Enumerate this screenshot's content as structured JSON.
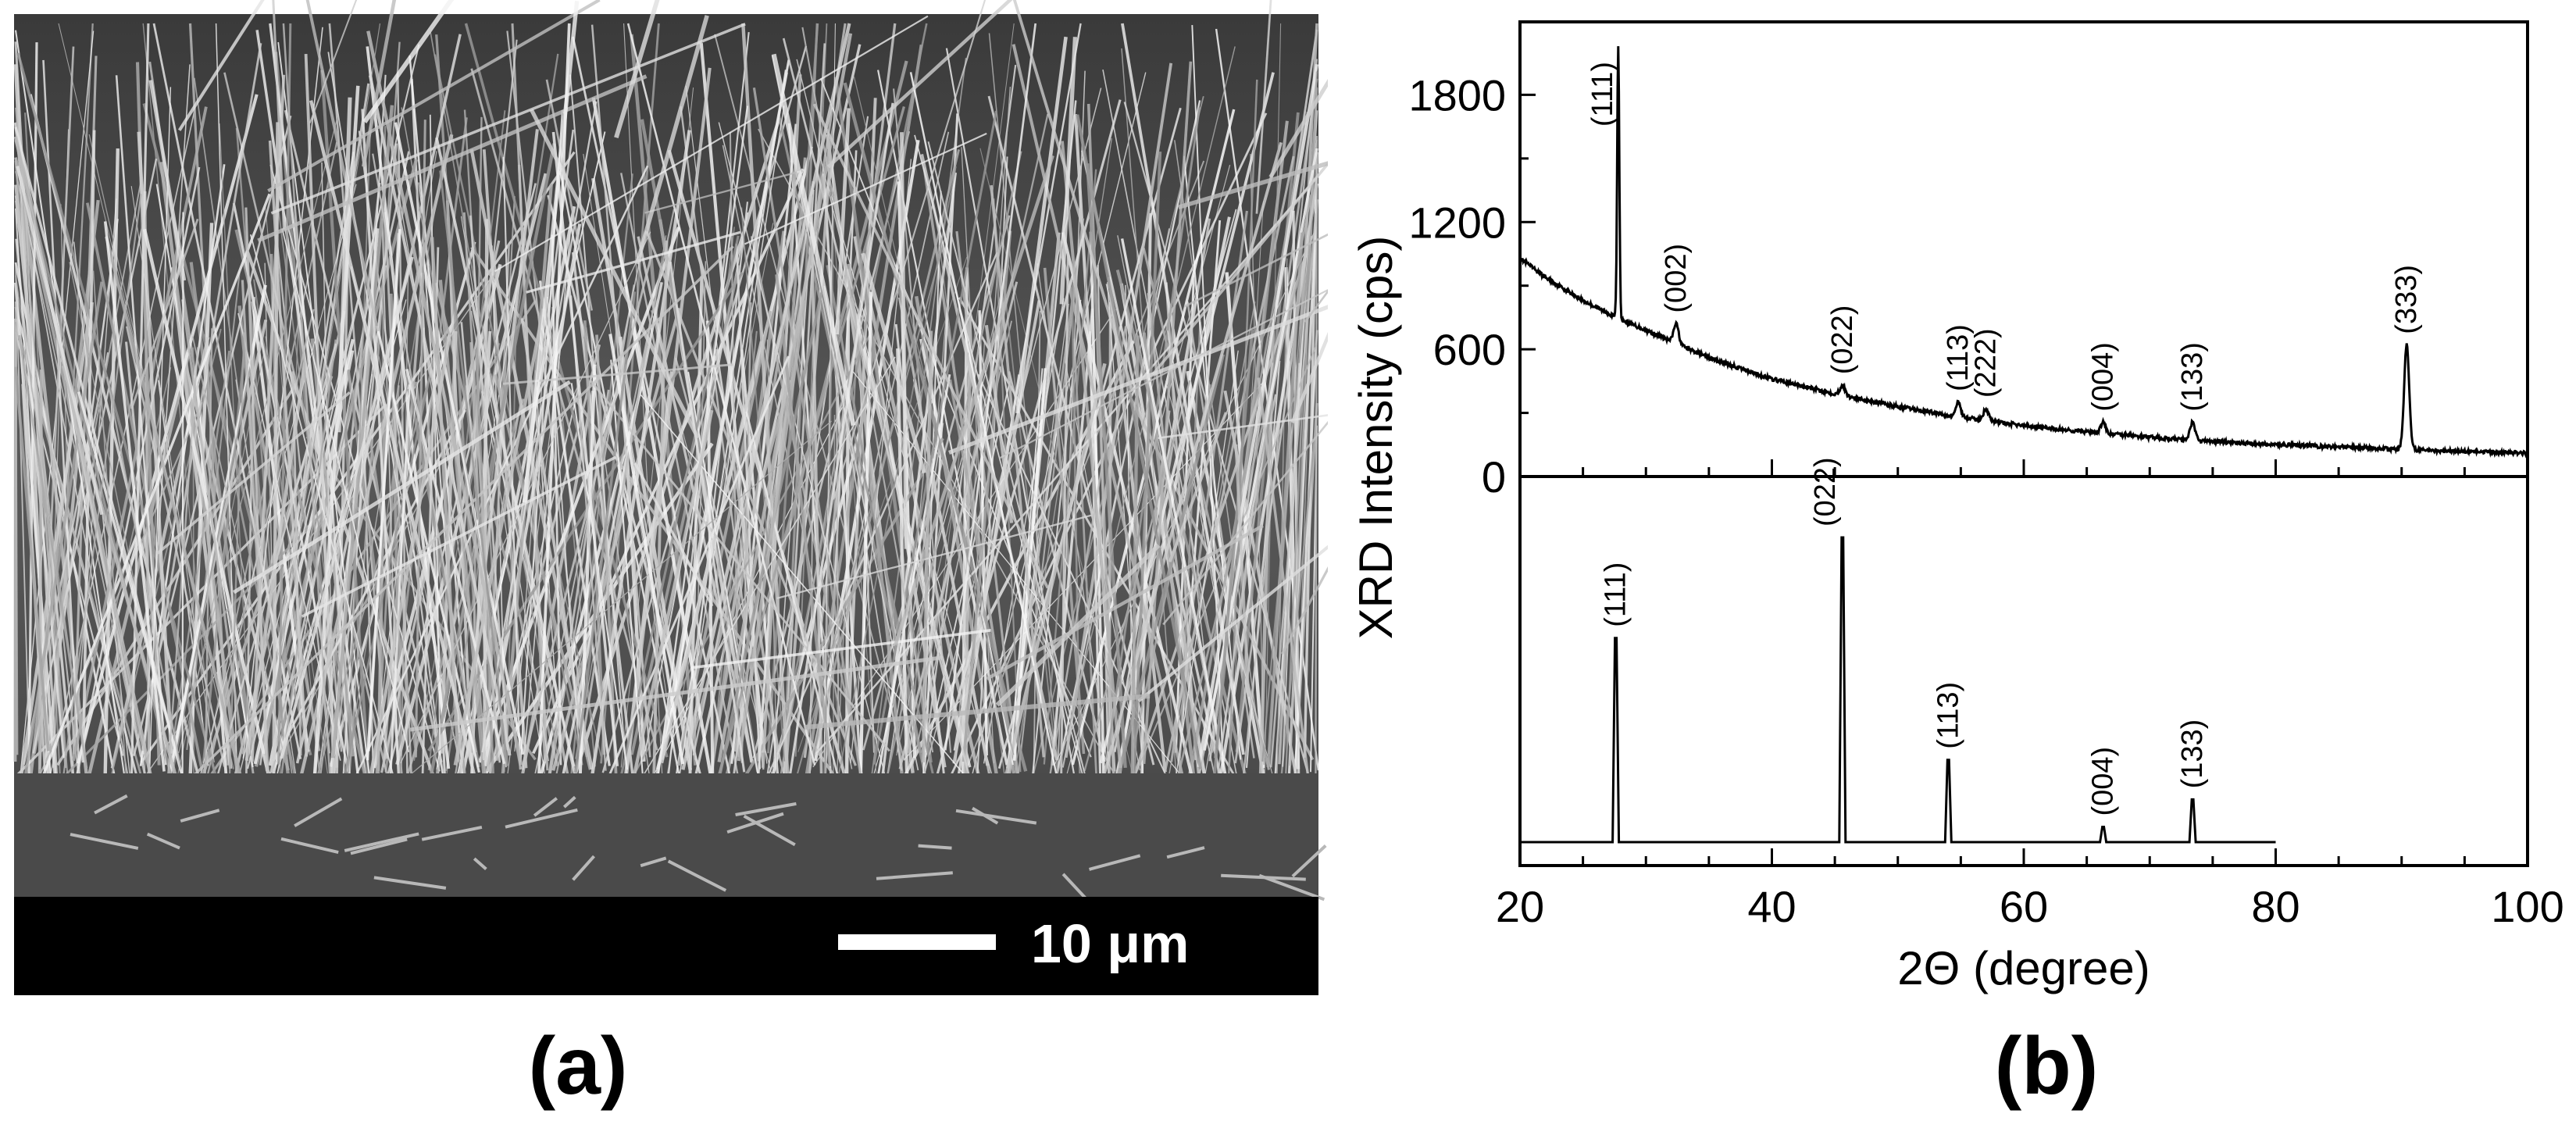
{
  "panel_a": {
    "label": "(a)",
    "scale_bar_text": "10 μm",
    "image_kind": "sem-micrograph-nanowire-array"
  },
  "panel_b": {
    "label": "(b)"
  },
  "chart_data": {
    "type": "line",
    "xlabel": "2Θ (degree)",
    "ylabel": "XRD Intensity (cps)",
    "xlim": [
      20,
      100
    ],
    "x_ticks": [
      20,
      40,
      60,
      80,
      100
    ],
    "y_ticks": [
      0,
      600,
      1200,
      1800
    ],
    "ylim_top": [
      0,
      2100
    ],
    "grid": false,
    "subplots": [
      {
        "name": "measured",
        "background": [
          [
            20,
            1030
          ],
          [
            22,
            940
          ],
          [
            25,
            830
          ],
          [
            28,
            740
          ],
          [
            30,
            690
          ],
          [
            35,
            560
          ],
          [
            40,
            460
          ],
          [
            45,
            390
          ],
          [
            50,
            330
          ],
          [
            55,
            280
          ],
          [
            60,
            240
          ],
          [
            65,
            210
          ],
          [
            70,
            185
          ],
          [
            75,
            165
          ],
          [
            80,
            150
          ],
          [
            85,
            140
          ],
          [
            90,
            128
          ],
          [
            95,
            118
          ],
          [
            100,
            110
          ]
        ],
        "peaks": [
          {
            "label": "(111)",
            "x": 27.8,
            "y": 2030
          },
          {
            "label": "(002)",
            "x": 32.4,
            "y": 720
          },
          {
            "label": "(022)",
            "x": 45.6,
            "y": 430
          },
          {
            "label": "(113)",
            "x": 54.8,
            "y": 350
          },
          {
            "label": "(222)",
            "x": 57.0,
            "y": 320
          },
          {
            "label": "(004)",
            "x": 66.3,
            "y": 255
          },
          {
            "label": "(133)",
            "x": 73.4,
            "y": 255
          },
          {
            "label": "(333)",
            "x": 90.4,
            "y": 620
          }
        ]
      },
      {
        "name": "reference",
        "x_range": [
          20,
          80
        ],
        "peaks": [
          {
            "label": "(111)",
            "x": 27.6,
            "rel_intensity": 0.67
          },
          {
            "label": "(022)",
            "x": 45.6,
            "rel_intensity": 1.0
          },
          {
            "label": "(113)",
            "x": 54.0,
            "rel_intensity": 0.27
          },
          {
            "label": "(004)",
            "x": 66.3,
            "rel_intensity": 0.05
          },
          {
            "label": "(133)",
            "x": 73.4,
            "rel_intensity": 0.14
          }
        ]
      }
    ]
  }
}
